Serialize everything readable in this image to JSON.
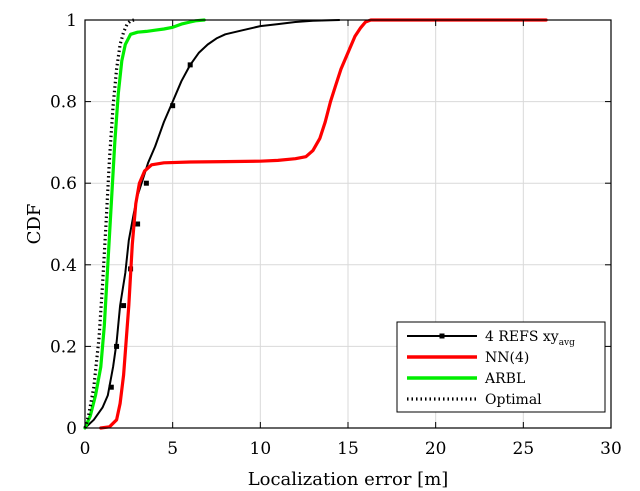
{
  "chart_data": {
    "type": "line",
    "title": "",
    "xlabel": "Localization error [m]",
    "ylabel": "CDF",
    "xlim": [
      0,
      30
    ],
    "ylim": [
      0,
      1
    ],
    "xticks": [
      0,
      5,
      10,
      15,
      20,
      25,
      30
    ],
    "xtick_labels": [
      "0",
      "5",
      "10",
      "15",
      "20",
      "25",
      "30"
    ],
    "yticks": [
      0,
      0.2,
      0.4,
      0.6,
      0.8,
      1
    ],
    "ytick_labels": [
      "0",
      "0.2",
      "0.4",
      "0.6",
      "0.8",
      "1"
    ],
    "grid": true,
    "legend_position": "bottom-right",
    "series": [
      {
        "name": "4 REFS xy",
        "name_sub": "avg",
        "color": "#000000",
        "style": "solid",
        "marker": "square",
        "x": [
          0,
          0.5,
          1.0,
          1.3,
          1.6,
          1.8,
          2.0,
          2.3,
          2.5,
          2.8,
          3.0,
          3.3,
          3.6,
          4.0,
          4.5,
          5.0,
          5.5,
          6.0,
          6.5,
          7.0,
          7.5,
          8.0,
          9.0,
          10.0,
          11.0,
          12.0,
          13.0,
          14.5
        ],
        "y": [
          0,
          0.02,
          0.05,
          0.08,
          0.15,
          0.21,
          0.3,
          0.38,
          0.46,
          0.53,
          0.57,
          0.61,
          0.65,
          0.69,
          0.75,
          0.8,
          0.85,
          0.89,
          0.92,
          0.94,
          0.955,
          0.965,
          0.975,
          0.985,
          0.99,
          0.995,
          0.998,
          1.0
        ],
        "marker_x": [
          1.5,
          1.8,
          2.2,
          2.6,
          3.0,
          3.5,
          5.0,
          6.0
        ],
        "marker_y": [
          0.1,
          0.2,
          0.3,
          0.39,
          0.5,
          0.6,
          0.79,
          0.89
        ]
      },
      {
        "name": "NN(4)",
        "color": "#ff0000",
        "style": "solid",
        "x": [
          0.9,
          1.4,
          1.8,
          2.0,
          2.2,
          2.5,
          2.7,
          2.9,
          3.1,
          3.4,
          3.8,
          4.5,
          6.0,
          8.0,
          10.0,
          11.0,
          12.0,
          12.6,
          13.0,
          13.4,
          13.7,
          14.0,
          14.3,
          14.6,
          15.0,
          15.4,
          15.7,
          16.0,
          16.3,
          17.0,
          20.0,
          24.0,
          26.3
        ],
        "y": [
          0,
          0.003,
          0.02,
          0.06,
          0.13,
          0.3,
          0.45,
          0.55,
          0.6,
          0.63,
          0.645,
          0.65,
          0.652,
          0.653,
          0.654,
          0.656,
          0.66,
          0.665,
          0.68,
          0.71,
          0.75,
          0.8,
          0.84,
          0.88,
          0.92,
          0.96,
          0.98,
          0.995,
          1.0,
          1.0,
          1.0,
          1.0,
          1.0
        ]
      },
      {
        "name": "ARBL",
        "color": "#00ee00",
        "style": "solid",
        "x": [
          0,
          0.3,
          0.6,
          0.9,
          1.1,
          1.3,
          1.5,
          1.7,
          1.9,
          2.1,
          2.3,
          2.6,
          3.0,
          3.5,
          4.0,
          4.5,
          5.0,
          5.5,
          6.0,
          6.3,
          6.8
        ],
        "y": [
          0,
          0.03,
          0.08,
          0.15,
          0.25,
          0.4,
          0.55,
          0.7,
          0.82,
          0.9,
          0.94,
          0.965,
          0.97,
          0.972,
          0.975,
          0.978,
          0.982,
          0.99,
          0.995,
          0.998,
          1.0
        ]
      },
      {
        "name": "Optimal",
        "color": "#000000",
        "style": "dotted",
        "x": [
          0,
          0.2,
          0.5,
          0.8,
          1.0,
          1.2,
          1.4,
          1.6,
          1.8,
          2.0,
          2.2,
          2.4,
          2.6,
          2.8
        ],
        "y": [
          0,
          0.03,
          0.1,
          0.22,
          0.35,
          0.5,
          0.66,
          0.79,
          0.88,
          0.94,
          0.97,
          0.99,
          0.998,
          1.0
        ]
      }
    ]
  }
}
